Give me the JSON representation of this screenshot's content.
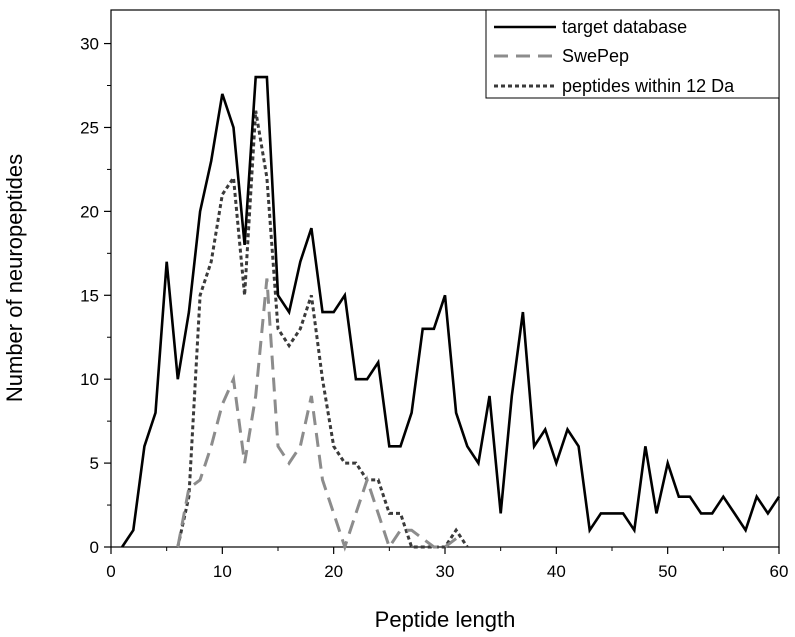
{
  "chart_data": {
    "type": "line",
    "title": "",
    "xlabel": "Peptide length",
    "ylabel": "Number of neuropeptides",
    "xlim": [
      0,
      60
    ],
    "ylim": [
      0,
      32
    ],
    "xticks": [
      "0",
      "10",
      "20",
      "30",
      "40",
      "50",
      "60"
    ],
    "yticks": [
      "0",
      "5",
      "10",
      "15",
      "20",
      "25",
      "30"
    ],
    "legend_position": "top-right",
    "series": [
      {
        "name": "target database",
        "style": "solid",
        "color": "#000000",
        "x": [
          1,
          2,
          3,
          4,
          5,
          6,
          7,
          8,
          9,
          10,
          11,
          12,
          13,
          14,
          15,
          16,
          17,
          18,
          19,
          20,
          21,
          22,
          23,
          24,
          25,
          26,
          27,
          28,
          29,
          30,
          31,
          32,
          33,
          34,
          35,
          36,
          37,
          38,
          39,
          40,
          41,
          42,
          43,
          44,
          45,
          46,
          47,
          48,
          49,
          50,
          51,
          52,
          53,
          54,
          55,
          56,
          57,
          58,
          59,
          60
        ],
        "y": [
          0,
          1,
          6,
          8,
          17,
          10,
          14,
          20,
          23,
          27,
          25,
          18,
          28,
          28,
          15,
          14,
          17,
          19,
          14,
          14,
          15,
          10,
          10,
          11,
          6,
          6,
          8,
          13,
          13,
          15,
          8,
          6,
          5,
          9,
          2,
          9,
          14,
          6,
          7,
          5,
          7,
          6,
          1,
          2,
          2,
          2,
          1,
          6,
          2,
          5,
          3,
          3,
          2,
          2,
          3,
          2,
          1,
          3,
          2,
          3
        ]
      },
      {
        "name": "SwePep",
        "style": "dashed",
        "color": "#8c8c8c",
        "x": [
          6,
          7,
          8,
          9,
          10,
          11,
          12,
          13,
          14,
          15,
          16,
          17,
          18,
          19,
          20,
          21,
          22,
          23,
          24,
          25,
          26,
          27,
          28,
          29,
          30,
          31
        ],
        "y": [
          0,
          3.5,
          4,
          6,
          8.5,
          10,
          5,
          9,
          16,
          6,
          5,
          6,
          9,
          4,
          2,
          0,
          2,
          4,
          2,
          0,
          1,
          1,
          0.5,
          0,
          0,
          0.5
        ]
      },
      {
        "name": "peptides within 12 Da",
        "style": "dotted",
        "color": "#3a3a3a",
        "x": [
          6,
          7,
          8,
          9,
          10,
          11,
          12,
          13,
          14,
          15,
          16,
          17,
          18,
          19,
          20,
          21,
          22,
          23,
          24,
          25,
          26,
          27,
          28,
          29,
          30,
          31,
          32
        ],
        "y": [
          0,
          3,
          15,
          17,
          21,
          22,
          15,
          26,
          22,
          13,
          12,
          13,
          15,
          10,
          6,
          5,
          5,
          4,
          4,
          2,
          2,
          0,
          0,
          0,
          0,
          1,
          0
        ]
      }
    ]
  }
}
